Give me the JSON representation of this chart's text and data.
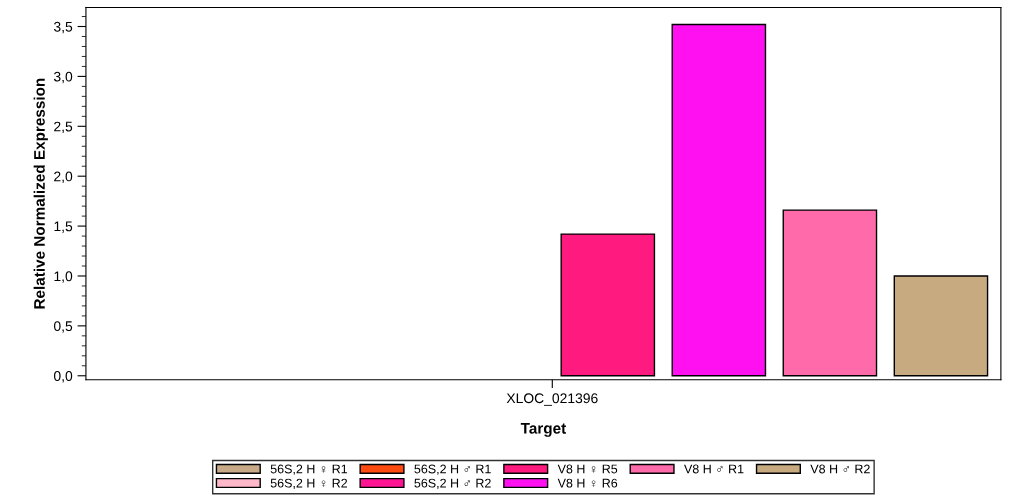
{
  "chart_data": {
    "type": "bar",
    "xlabel": "Target",
    "ylabel": "Relative Normalized Expression",
    "categories": [
      "XLOC_021396"
    ],
    "series": [
      {
        "name": "56S,2 H ♀ R1",
        "color": "#c8aa88",
        "values": [
          null
        ]
      },
      {
        "name": "56S,2 H ♀ R2",
        "color": "#ffb8c8",
        "values": [
          null
        ]
      },
      {
        "name": "56S,2 H ♂ R1",
        "color": "#ff4a10",
        "values": [
          null
        ]
      },
      {
        "name": "56S,2 H ♂ R2",
        "color": "#ff1493",
        "values": [
          null
        ]
      },
      {
        "name": "V8 H ♀ R5",
        "color": "#ff1a80",
        "values": [
          1.42
        ]
      },
      {
        "name": "V8 H ♀ R6",
        "color": "#ff10f0",
        "values": [
          3.52
        ]
      },
      {
        "name": "V8 H ♂ R1",
        "color": "#ff6aaa",
        "values": [
          1.66
        ]
      },
      {
        "name": "V8 H ♂ R2",
        "color": "#c8aa80",
        "values": [
          1.0
        ]
      }
    ],
    "ylim": [
      -0.04,
      3.69
    ],
    "yticks": [
      {
        "value": 0,
        "label": "0,0"
      },
      {
        "value": 0.5,
        "label": "0,5"
      },
      {
        "value": 1,
        "label": "1,0"
      },
      {
        "value": 1.5,
        "label": "1,5"
      },
      {
        "value": 2,
        "label": "2,0"
      },
      {
        "value": 2.5,
        "label": "2,5"
      },
      {
        "value": 3,
        "label": "3,0"
      },
      {
        "value": 3.5,
        "label": "3,5"
      }
    ],
    "grid": false,
    "legend": "bottom"
  }
}
